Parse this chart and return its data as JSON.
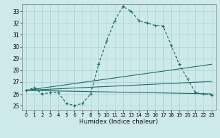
{
  "title": "",
  "xlabel": "Humidex (Indice chaleur)",
  "ylabel": "",
  "xlim": [
    -0.5,
    23.5
  ],
  "ylim": [
    24.6,
    33.6
  ],
  "yticks": [
    25,
    26,
    27,
    28,
    29,
    30,
    31,
    32,
    33
  ],
  "xticks": [
    0,
    1,
    2,
    3,
    4,
    5,
    6,
    7,
    8,
    9,
    10,
    11,
    12,
    13,
    14,
    15,
    16,
    17,
    18,
    19,
    20,
    21,
    22,
    23
  ],
  "background_color": "#cee9ea",
  "line_color": "#1a6b5e",
  "grid_color": "#b0d8da",
  "main_curve": {
    "x": [
      0,
      1,
      2,
      3,
      4,
      5,
      6,
      7,
      8,
      9,
      10,
      11,
      12,
      13,
      14,
      15,
      16,
      17,
      18,
      19,
      20,
      21,
      22,
      23
    ],
    "y": [
      26.3,
      26.5,
      26.0,
      26.1,
      26.1,
      25.2,
      25.0,
      25.2,
      26.0,
      28.5,
      30.5,
      32.2,
      33.4,
      33.0,
      32.2,
      32.0,
      31.8,
      31.75,
      30.1,
      28.5,
      27.3,
      26.1,
      26.0,
      25.9
    ]
  },
  "trend_lines": [
    {
      "x0": 0.0,
      "y0": 26.3,
      "x1": 23.0,
      "y1": 26.0
    },
    {
      "x0": 0.0,
      "y0": 26.3,
      "x1": 23.0,
      "y1": 27.05
    },
    {
      "x0": 0.0,
      "y0": 26.3,
      "x1": 23.0,
      "y1": 28.5
    }
  ]
}
